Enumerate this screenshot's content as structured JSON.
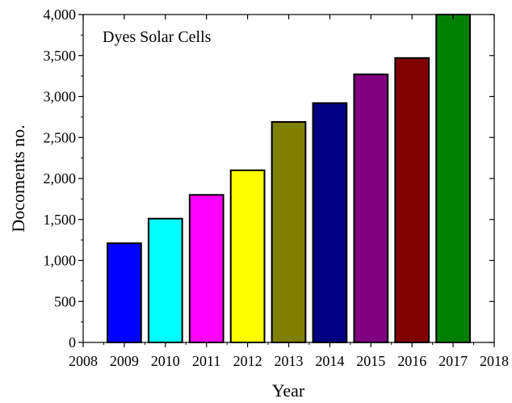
{
  "chart_data": {
    "type": "bar",
    "title": "",
    "annotation": "Dyes Solar Cells",
    "xlabel": "Year",
    "ylabel": "Docoments no.",
    "categories": [
      "2009",
      "2010",
      "2011",
      "2012",
      "2013",
      "2014",
      "2015",
      "2016",
      "2017"
    ],
    "values": [
      1210,
      1510,
      1800,
      2100,
      2690,
      2920,
      3270,
      3470,
      4000
    ],
    "bar_colors": [
      "#0000ff",
      "#00ffff",
      "#ff00ff",
      "#ffff00",
      "#808000",
      "#000080",
      "#800080",
      "#800000",
      "#008000"
    ],
    "xlim": [
      2008,
      2018
    ],
    "ylim": [
      0,
      4000
    ],
    "x_ticks": [
      "2008",
      "2009",
      "2010",
      "2011",
      "2012",
      "2013",
      "2014",
      "2015",
      "2016",
      "2017",
      "2018"
    ],
    "y_ticks": [
      "0",
      "500",
      "1,000",
      "1,500",
      "2,000",
      "2,500",
      "3,000",
      "3,500",
      "4,000"
    ],
    "grid": false,
    "legend": "none"
  }
}
